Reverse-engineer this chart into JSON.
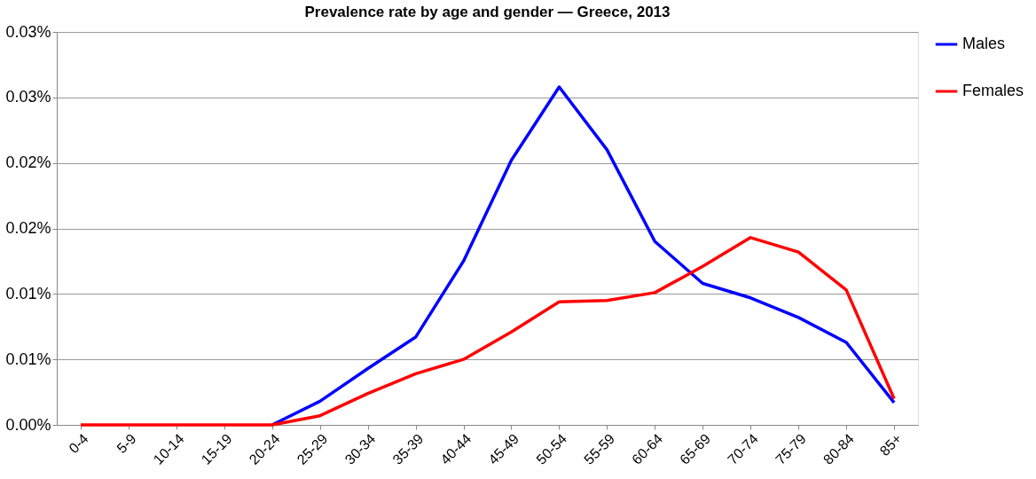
{
  "chart_data": {
    "type": "line",
    "title": "Prevalence rate by age and gender — Greece, 2013",
    "categories": [
      "0-4",
      "5-9",
      "10-14",
      "15-19",
      "20-24",
      "25-29",
      "30-34",
      "35-39",
      "40-44",
      "45-49",
      "50-54",
      "55-59",
      "60-64",
      "65-69",
      "70-74",
      "75-79",
      "80-84",
      "85+"
    ],
    "series": [
      {
        "name": "Males",
        "color": "#0000ff",
        "values": [
          null,
          null,
          null,
          null,
          0,
          0.0018,
          0.0043,
          0.0067,
          0.0125,
          0.0202,
          0.0258,
          0.021,
          0.014,
          0.0108,
          0.0097,
          0.0082,
          0.0063,
          0.0017
        ]
      },
      {
        "name": "Females",
        "color": "#ff0000",
        "values": [
          0,
          0,
          0,
          0,
          0,
          0.0007,
          0.0024,
          0.0039,
          0.005,
          0.0071,
          0.0094,
          0.0095,
          0.0101,
          0.0121,
          0.0143,
          0.0132,
          0.0103,
          0.002
        ]
      }
    ],
    "ylim": [
      0,
      0.03
    ],
    "yticks": [
      {
        "value": 0,
        "label": "0.00%"
      },
      {
        "value": 0.005,
        "label": "0.01%"
      },
      {
        "value": 0.01,
        "label": "0.01%"
      },
      {
        "value": 0.015,
        "label": "0.02%"
      },
      {
        "value": 0.02,
        "label": "0.02%"
      },
      {
        "value": 0.025,
        "label": "0.03%"
      },
      {
        "value": 0.03,
        "label": "0.03%"
      }
    ],
    "grid": "y",
    "legend": "right",
    "marker": "none",
    "line_style": "solid"
  }
}
